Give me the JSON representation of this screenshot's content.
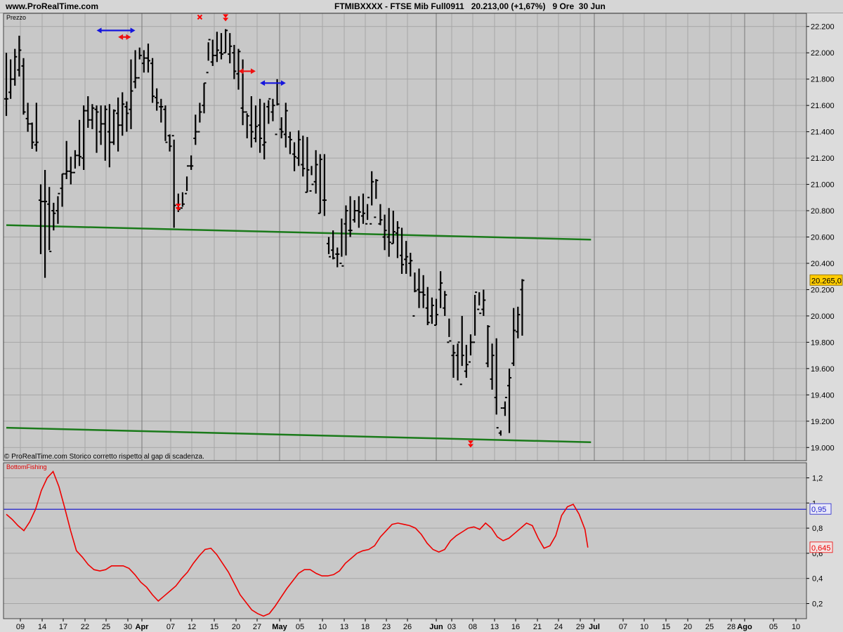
{
  "header": {
    "site": "www.ProRealTime.com",
    "title": "FTMIBXXXX - FTSE Mib Full0911   20.213,00 (+1,67%)   9 Ore  30 Jun"
  },
  "price_panel": {
    "label": "Prezzo",
    "footnote": "© ProRealTime.com  Storico corretto rispetto al gap di scadenza.",
    "last_value_label": "20.265,0",
    "y_ticks": [
      "19.000",
      "19.200",
      "19.400",
      "19.600",
      "19.800",
      "20.000",
      "20.200",
      "20.400",
      "20.600",
      "20.800",
      "21.000",
      "21.200",
      "21.400",
      "21.600",
      "21.800",
      "22.000",
      "22.200"
    ]
  },
  "indicator_panel": {
    "label": "BottomFishing",
    "level_label": "0,95",
    "last_value_label": "0,645",
    "y_ticks": [
      "0,2",
      "0,4",
      "0,6",
      "0,8",
      "1",
      "1,2"
    ]
  },
  "x_ticks": [
    "09",
    "14",
    "17",
    "22",
    "25",
    "30",
    "Apr",
    "07",
    "12",
    "15",
    "20",
    "27",
    "May",
    "05",
    "10",
    "13",
    "18",
    "23",
    "26",
    "Jun",
    "03",
    "08",
    "13",
    "16",
    "21",
    "24",
    "29",
    "Jul",
    "07",
    "10",
    "15",
    "20",
    "25",
    "28",
    "Ago",
    "05",
    "10"
  ],
  "colors": {
    "background": "#c8c8c8",
    "grid": "#a6a6a6",
    "bars": "#000000",
    "trendlines": "#1a7a1a",
    "signal_down": "#ff0000",
    "arrows_red": "#ee1111",
    "arrows_blue": "#1515dd",
    "indicator": "#ee0000",
    "level_line": "#2020cc",
    "last_price_box": "#ffcc00"
  },
  "chart_data": [
    {
      "type": "ohlc",
      "price_axis": {
        "ylim": [
          18900,
          22300
        ],
        "ticks": [
          19000,
          19200,
          19400,
          19600,
          19800,
          20000,
          20200,
          20400,
          20600,
          20800,
          21000,
          21200,
          21400,
          21600,
          21800,
          22000,
          22200
        ]
      },
      "bars": [
        [
          21650,
          22000,
          21520,
          21650
        ],
        [
          21700,
          21950,
          21650,
          21800
        ],
        [
          21800,
          22030,
          21750,
          21970
        ],
        [
          21870,
          22130,
          21820,
          22020
        ],
        [
          21900,
          21960,
          21530,
          21550
        ],
        [
          21500,
          21620,
          21400,
          21460
        ],
        [
          21460,
          21470,
          21270,
          21320
        ],
        [
          21300,
          21620,
          21250,
          21320
        ],
        [
          20880,
          21000,
          20470,
          20870
        ],
        [
          20870,
          21110,
          20290,
          20870
        ],
        [
          20850,
          20980,
          20500,
          20490
        ],
        [
          20800,
          20860,
          20650,
          20780
        ],
        [
          20800,
          20910,
          20700,
          20930
        ],
        [
          20970,
          21080,
          20830,
          21080
        ],
        [
          21080,
          21330,
          21040,
          21100
        ],
        [
          21100,
          21210,
          21000,
          21090
        ],
        [
          21090,
          21260,
          21120,
          21220
        ],
        [
          21220,
          21490,
          21140,
          21210
        ],
        [
          21200,
          21600,
          21110,
          21560
        ],
        [
          21560,
          21670,
          21430,
          21490
        ],
        [
          21490,
          21610,
          21420,
          21580
        ],
        [
          21570,
          21600,
          21240,
          21550
        ],
        [
          21400,
          21600,
          21300,
          21460
        ],
        [
          21460,
          21600,
          21180,
          21570
        ],
        [
          21400,
          21610,
          21130,
          21320
        ],
        [
          21320,
          21570,
          21300,
          21560
        ],
        [
          21540,
          21660,
          21250,
          21450
        ],
        [
          21450,
          21700,
          21370,
          21610
        ],
        [
          21590,
          21630,
          21400,
          21540
        ],
        [
          21570,
          21950,
          21420,
          21710
        ],
        [
          21780,
          22020,
          21730,
          21810
        ],
        [
          21810,
          22040,
          21950,
          21980
        ],
        [
          21920,
          22020,
          21850,
          21960
        ],
        [
          21960,
          22070,
          21850,
          21940
        ],
        [
          21920,
          21960,
          21620,
          21670
        ],
        [
          21660,
          21730,
          21560,
          21620
        ],
        [
          21590,
          21650,
          21470,
          21590
        ],
        [
          21570,
          21600,
          21330,
          21320
        ],
        [
          21370,
          21380,
          21250,
          21290
        ],
        [
          21370,
          21340,
          20670,
          20840
        ],
        [
          20820,
          20930,
          20790,
          20810
        ],
        [
          20820,
          20940,
          20830,
          20850
        ],
        [
          20930,
          21060,
          20950,
          21140
        ],
        [
          21140,
          21220,
          21110,
          21140
        ],
        [
          21350,
          21530,
          21300,
          21400
        ],
        [
          21400,
          21620,
          21470,
          21550
        ],
        [
          21600,
          21770,
          21540,
          21770
        ],
        [
          21850,
          22080,
          21940,
          22100
        ],
        [
          21930,
          22100,
          21900,
          21980
        ],
        [
          21980,
          22160,
          21930,
          22020
        ],
        [
          22000,
          22150,
          21950,
          21990
        ],
        [
          22000,
          22180,
          22000,
          22170
        ],
        [
          21990,
          22150,
          21920,
          22050
        ],
        [
          22000,
          22060,
          21800,
          21860
        ],
        [
          21840,
          22030,
          21720,
          22010
        ],
        [
          21580,
          21950,
          21450,
          21550
        ],
        [
          21550,
          21540,
          21350,
          21520
        ],
        [
          21450,
          21670,
          21280,
          21400
        ],
        [
          21350,
          21600,
          21320,
          21440
        ],
        [
          21450,
          21650,
          21240,
          21350
        ],
        [
          21300,
          21620,
          21190,
          21320
        ],
        [
          21590,
          21640,
          21460,
          21650
        ],
        [
          21550,
          21650,
          21480,
          21600
        ],
        [
          21380,
          21800,
          21600,
          21610
        ],
        [
          21420,
          21510,
          21350,
          21400
        ],
        [
          21380,
          21620,
          21280,
          21560
        ],
        [
          21360,
          21400,
          21230,
          21340
        ],
        [
          21230,
          21320,
          21100,
          21210
        ],
        [
          21200,
          21410,
          21140,
          21340
        ],
        [
          21150,
          21370,
          21060,
          21120
        ],
        [
          20940,
          21360,
          20940,
          21110
        ],
        [
          20950,
          21140,
          21070,
          21000
        ],
        [
          21020,
          21260,
          20930,
          21150
        ],
        [
          20780,
          21230,
          20780,
          21190
        ],
        [
          20880,
          21230,
          20760,
          20880
        ],
        [
          20550,
          20600,
          20470,
          20450
        ],
        [
          20500,
          20650,
          20430,
          20440
        ],
        [
          20470,
          20520,
          20370,
          20470
        ],
        [
          20400,
          20740,
          20450,
          20380
        ],
        [
          20700,
          20840,
          20460,
          20800
        ],
        [
          20650,
          20910,
          20600,
          20650
        ],
        [
          20730,
          20880,
          20710,
          20800
        ],
        [
          20800,
          20910,
          20670,
          20790
        ],
        [
          20760,
          20930,
          20700,
          20780
        ],
        [
          20700,
          20850,
          20730,
          20900
        ],
        [
          20700,
          21100,
          20840,
          21020
        ],
        [
          20750,
          21040,
          20890,
          21030
        ],
        [
          20700,
          20850,
          20690,
          20730
        ],
        [
          20600,
          20770,
          20500,
          20650
        ],
        [
          20600,
          20820,
          20450,
          20560
        ],
        [
          20550,
          20800,
          20550,
          20640
        ],
        [
          20630,
          20720,
          20440,
          20670
        ],
        [
          20460,
          20670,
          20320,
          20390
        ],
        [
          20430,
          20570,
          20320,
          20450
        ],
        [
          20400,
          20480,
          20300,
          20420
        ],
        [
          20000,
          20330,
          20180,
          20190
        ],
        [
          20200,
          20360,
          20060,
          20180
        ],
        [
          20180,
          20310,
          20060,
          20160
        ],
        [
          20060,
          20220,
          19930,
          19950
        ],
        [
          20000,
          20140,
          19940,
          20080
        ],
        [
          19930,
          20130,
          19930,
          20010
        ],
        [
          20200,
          20340,
          20060,
          20250
        ],
        [
          20060,
          20190,
          20000,
          20160
        ],
        [
          19800,
          19980,
          19840,
          19810
        ],
        [
          19700,
          19780,
          19530,
          19720
        ],
        [
          19700,
          19790,
          19510,
          19800
        ],
        [
          19480,
          20000,
          19620,
          19700
        ],
        [
          19580,
          19780,
          19530,
          19630
        ],
        [
          19650,
          19860,
          19700,
          19800
        ],
        [
          19800,
          20160,
          19850,
          20180
        ],
        [
          20050,
          20180,
          20080,
          20020
        ],
        [
          20050,
          20200,
          20000,
          20120
        ],
        [
          19640,
          19930,
          19610,
          19920
        ],
        [
          19520,
          19790,
          19440,
          19700
        ],
        [
          19380,
          19830,
          19250,
          19150
        ],
        [
          19110,
          19130,
          19090,
          19300
        ],
        [
          19300,
          19350,
          19240,
          19380
        ],
        [
          19470,
          19600,
          19110,
          19530
        ],
        [
          19640,
          20060,
          19620,
          19890
        ],
        [
          19880,
          20070,
          19830,
          20010
        ],
        [
          20200,
          20280,
          19850,
          20270
        ]
      ],
      "trendlines": [
        {
          "from": [
            0,
            20690
          ],
          "to": [
            136,
            20580
          ]
        },
        {
          "from": [
            0,
            19150
          ],
          "to": [
            136,
            19040
          ]
        }
      ],
      "signals": [
        {
          "bar": 40,
          "price": 20810,
          "kind": "down"
        },
        {
          "bar": 45,
          "price": 22250,
          "kind": "cross"
        },
        {
          "bar": 51,
          "price": 22250,
          "kind": "down"
        },
        {
          "bar": 108,
          "price": 19010,
          "kind": "down"
        }
      ],
      "range_arrows": [
        {
          "from": 21,
          "to": 30,
          "price": 22170,
          "color": "blue"
        },
        {
          "from": 26,
          "to": 29,
          "price": 22120,
          "color": "red"
        },
        {
          "from": 54,
          "to": 58,
          "price": 21860,
          "color": "red"
        },
        {
          "from": 59,
          "to": 65,
          "price": 21770,
          "color": "blue"
        }
      ]
    },
    {
      "type": "line",
      "series": [
        {
          "name": "BottomFishing",
          "y_axis": "0..1,3"
        }
      ],
      "ylim": [
        0.08,
        1.32
      ],
      "level": 0.95,
      "points": [
        [
          0,
          0.91
        ],
        [
          2,
          0.87
        ],
        [
          4,
          0.82
        ],
        [
          6,
          0.78
        ],
        [
          8,
          0.85
        ],
        [
          10,
          0.95
        ],
        [
          12,
          1.1
        ],
        [
          14,
          1.2
        ],
        [
          16,
          1.25
        ],
        [
          18,
          1.13
        ],
        [
          20,
          0.96
        ],
        [
          22,
          0.78
        ],
        [
          24,
          0.62
        ],
        [
          26,
          0.57
        ],
        [
          28,
          0.51
        ],
        [
          30,
          0.47
        ],
        [
          32,
          0.46
        ],
        [
          34,
          0.47
        ],
        [
          36,
          0.5
        ],
        [
          38,
          0.5
        ],
        [
          40,
          0.5
        ],
        [
          42,
          0.48
        ],
        [
          44,
          0.43
        ],
        [
          46,
          0.37
        ],
        [
          48,
          0.33
        ],
        [
          50,
          0.27
        ],
        [
          52,
          0.22
        ],
        [
          54,
          0.26
        ],
        [
          56,
          0.3
        ],
        [
          58,
          0.34
        ],
        [
          60,
          0.4
        ],
        [
          62,
          0.45
        ],
        [
          64,
          0.52
        ],
        [
          66,
          0.58
        ],
        [
          68,
          0.63
        ],
        [
          70,
          0.64
        ],
        [
          72,
          0.59
        ],
        [
          74,
          0.52
        ],
        [
          76,
          0.45
        ],
        [
          78,
          0.36
        ],
        [
          80,
          0.27
        ],
        [
          82,
          0.21
        ],
        [
          84,
          0.15
        ],
        [
          86,
          0.12
        ],
        [
          88,
          0.1
        ],
        [
          90,
          0.12
        ],
        [
          92,
          0.18
        ],
        [
          94,
          0.25
        ],
        [
          96,
          0.32
        ],
        [
          98,
          0.38
        ],
        [
          100,
          0.44
        ],
        [
          102,
          0.47
        ],
        [
          104,
          0.47
        ],
        [
          106,
          0.44
        ],
        [
          108,
          0.42
        ],
        [
          110,
          0.42
        ],
        [
          112,
          0.43
        ],
        [
          114,
          0.46
        ],
        [
          116,
          0.52
        ],
        [
          118,
          0.56
        ],
        [
          120,
          0.6
        ],
        [
          122,
          0.62
        ],
        [
          124,
          0.63
        ],
        [
          126,
          0.66
        ],
        [
          128,
          0.73
        ],
        [
          130,
          0.78
        ],
        [
          132,
          0.83
        ],
        [
          134,
          0.84
        ],
        [
          136,
          0.83
        ],
        [
          138,
          0.82
        ],
        [
          140,
          0.8
        ],
        [
          142,
          0.75
        ],
        [
          144,
          0.68
        ],
        [
          146,
          0.63
        ],
        [
          148,
          0.61
        ],
        [
          150,
          0.63
        ],
        [
          152,
          0.7
        ],
        [
          154,
          0.74
        ],
        [
          156,
          0.77
        ],
        [
          158,
          0.8
        ],
        [
          160,
          0.81
        ],
        [
          162,
          0.79
        ],
        [
          164,
          0.84
        ],
        [
          166,
          0.8
        ],
        [
          168,
          0.73
        ],
        [
          170,
          0.7
        ],
        [
          172,
          0.72
        ],
        [
          174,
          0.76
        ],
        [
          176,
          0.8
        ],
        [
          178,
          0.84
        ],
        [
          180,
          0.82
        ],
        [
          182,
          0.72
        ],
        [
          184,
          0.64
        ],
        [
          186,
          0.66
        ],
        [
          188,
          0.74
        ],
        [
          190,
          0.9
        ],
        [
          192,
          0.97
        ],
        [
          194,
          0.99
        ],
        [
          196,
          0.91
        ],
        [
          198,
          0.79
        ],
        [
          199,
          0.645
        ]
      ]
    }
  ]
}
